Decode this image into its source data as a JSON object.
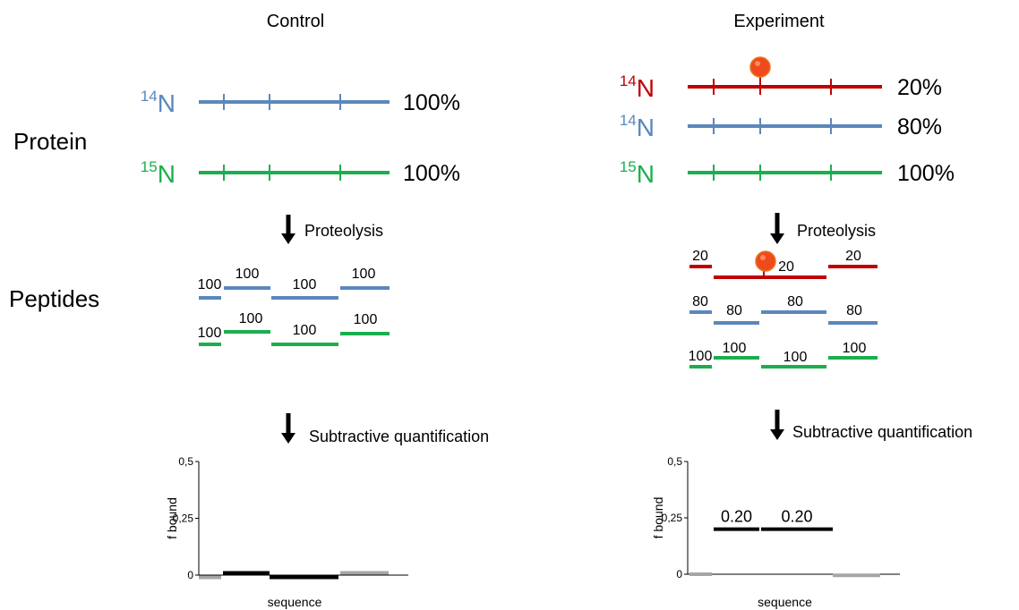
{
  "row_labels": {
    "protein": "Protein",
    "peptides": "Peptides"
  },
  "panels": [
    {
      "title": "Control",
      "proteins": [
        {
          "mass": "14",
          "element": "N",
          "percent": "100%",
          "color": "#5b87bd"
        },
        {
          "mass": "15",
          "element": "N",
          "percent": "100%",
          "color": "#1cae4e"
        }
      ],
      "step1": "Proteolysis",
      "peptides": [
        {
          "color": "#5b87bd",
          "labels": [
            "100",
            "100",
            "100",
            "100"
          ]
        },
        {
          "color": "#1cae4e",
          "labels": [
            "100",
            "100",
            "100",
            "100"
          ]
        }
      ],
      "step2": "Subtractive quantification",
      "plot": {
        "y_label": "f bound",
        "x_label": "sequence",
        "ylim": [
          0,
          0.5
        ],
        "yticks": [
          {
            "value": 0.5,
            "label": "0,5"
          },
          {
            "value": 0.25,
            "label": "0,25"
          },
          0
        ],
        "bars": [
          {
            "value": -0.01,
            "color": "#a6a6a6"
          },
          {
            "value": 0.01,
            "color": "#000000"
          },
          {
            "value": -0.01,
            "color": "#000000"
          },
          {
            "value": 0.01,
            "color": "#a6a6a6"
          }
        ]
      }
    },
    {
      "title": "Experiment",
      "proteins": [
        {
          "mass": "14",
          "element": "N",
          "percent": "20%",
          "color": "#c00000"
        },
        {
          "mass": "14",
          "element": "N",
          "percent": "80%",
          "color": "#5b87bd"
        },
        {
          "mass": "15",
          "element": "N",
          "percent": "100%",
          "color": "#1cae4e"
        }
      ],
      "step1": "Proteolysis",
      "peptides": [
        {
          "color": "#c00000",
          "labels": [
            "20",
            "20",
            "20"
          ]
        },
        {
          "color": "#5b87bd",
          "labels": [
            "80",
            "80",
            "80",
            "80"
          ]
        },
        {
          "color": "#1cae4e",
          "labels": [
            "100",
            "100",
            "100",
            "100"
          ]
        }
      ],
      "step2": "Subtractive quantification",
      "plot": {
        "y_label": "f bound",
        "x_label": "sequence",
        "ylim": [
          0,
          0.5
        ],
        "yticks": [
          {
            "value": 0.5,
            "label": "0,5"
          },
          {
            "value": 0.25,
            "label": "0,25"
          },
          0
        ],
        "bars": [
          {
            "value": 0,
            "color": "#a6a6a6"
          },
          {
            "value": 0.2,
            "label": "0.20",
            "color": "#000000"
          },
          {
            "value": 0.2,
            "label": "0.20",
            "color": "#000000"
          },
          {
            "value": -0.005,
            "color": "#a6a6a6"
          }
        ]
      }
    }
  ]
}
